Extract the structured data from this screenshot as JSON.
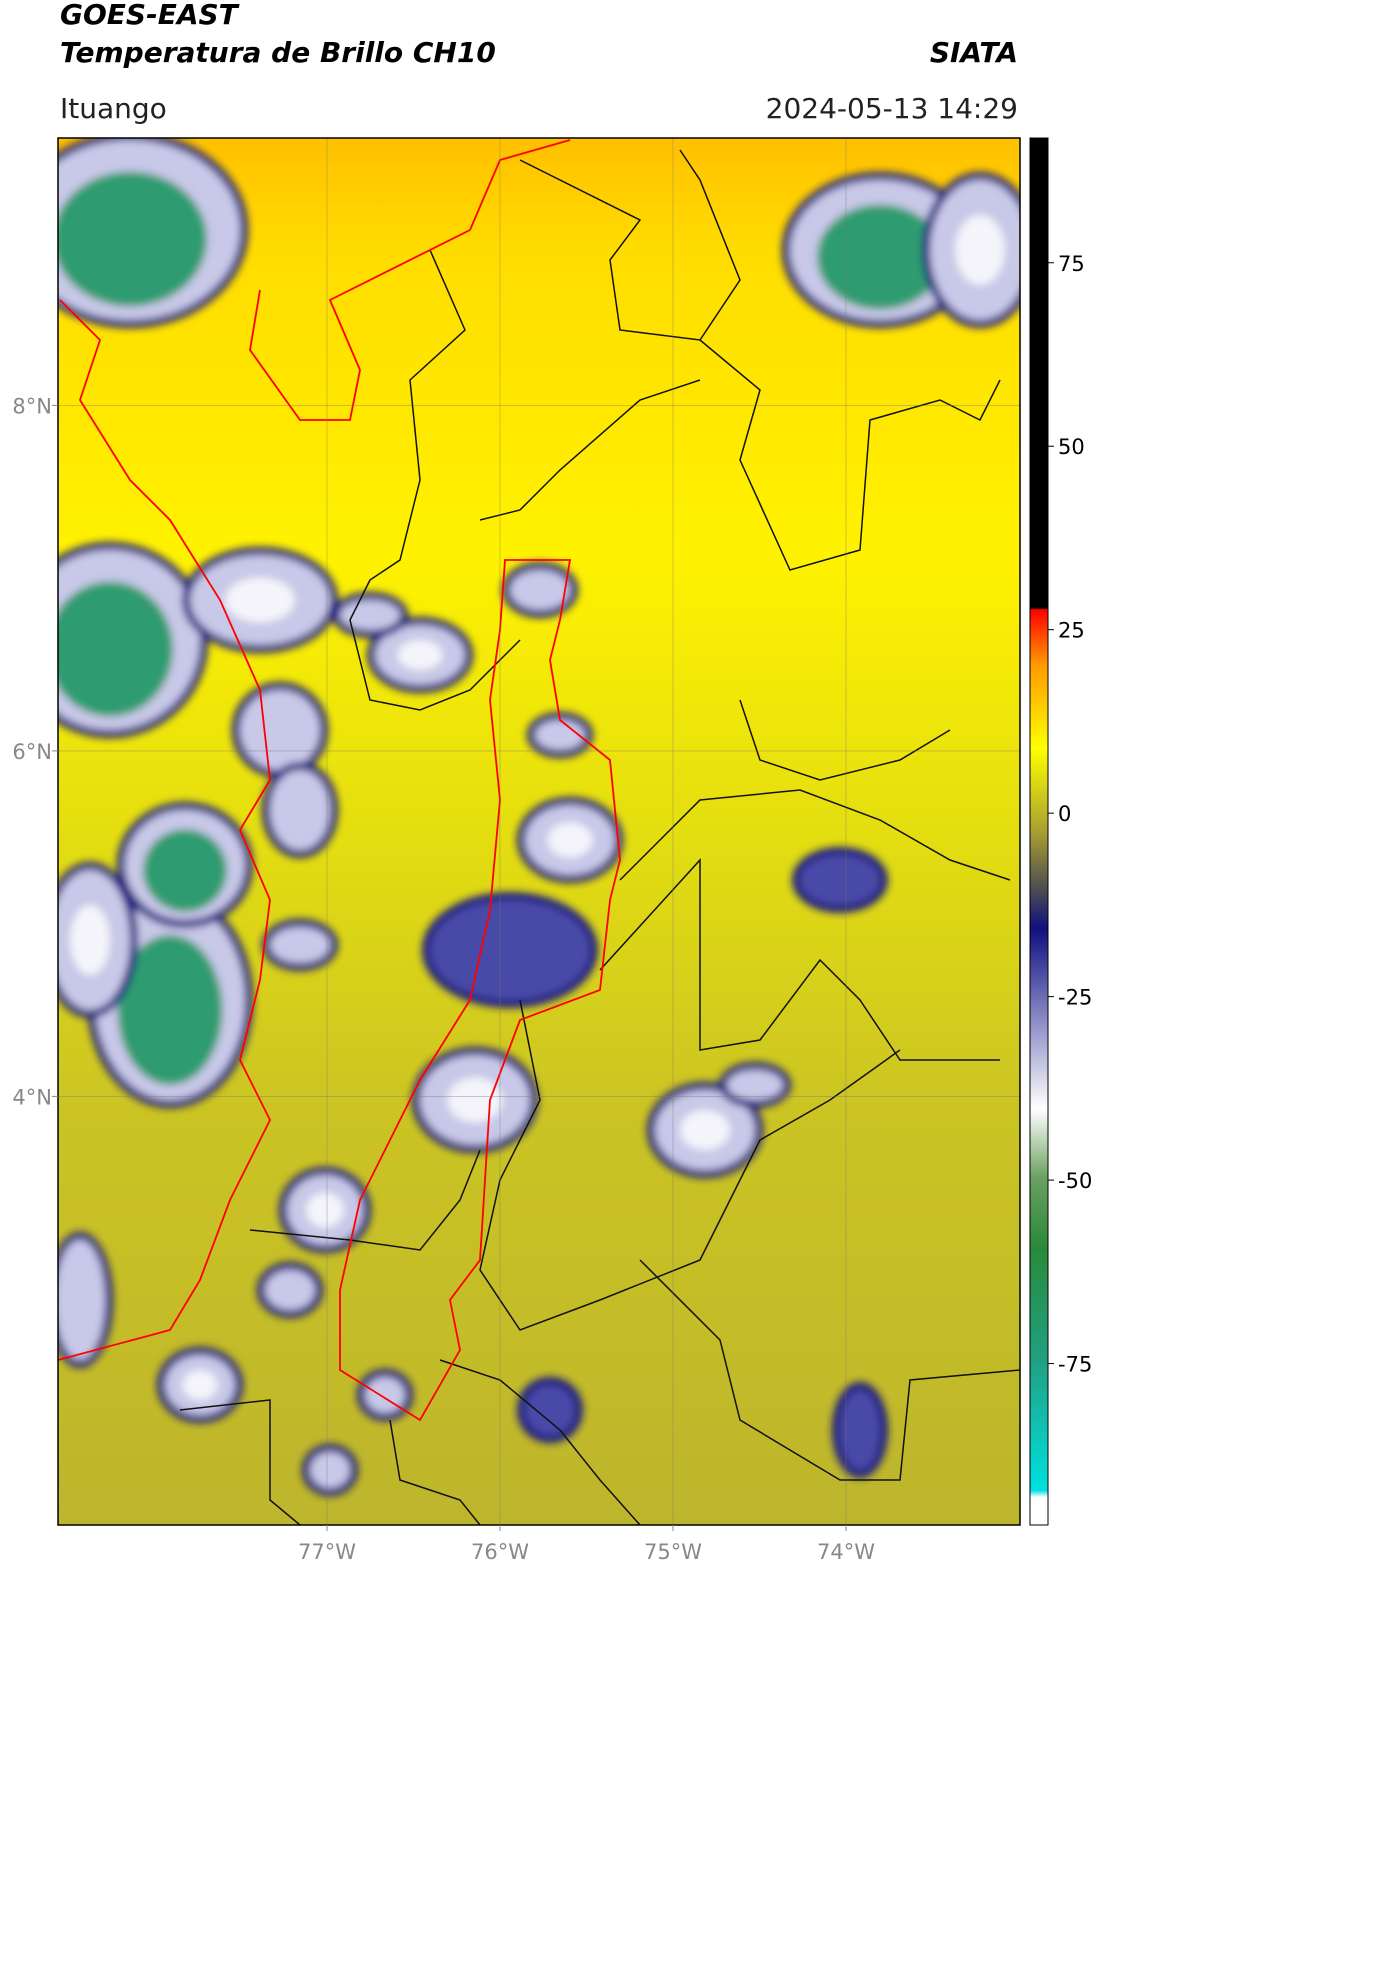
{
  "header": {
    "title_line1": "GOES-EAST",
    "title_line2": "Temperatura de Brillo CH10",
    "source": "SIATA",
    "region": "Ituango",
    "datetime": "2024-05-13 14:29"
  },
  "map": {
    "xlim": [
      -78.555,
      -72.994
    ],
    "ylim": [
      1.519,
      9.548
    ],
    "xticks": [
      {
        "value": -77,
        "label": "77°W"
      },
      {
        "value": -76,
        "label": "76°W"
      },
      {
        "value": -75,
        "label": "75°W"
      },
      {
        "value": -74,
        "label": "74°W"
      }
    ],
    "yticks": [
      {
        "value": 8,
        "label": "8°N"
      },
      {
        "value": 6,
        "label": "6°N"
      },
      {
        "value": 4,
        "label": "4°N"
      }
    ],
    "grid": true
  },
  "colorbar": {
    "lim": [
      -97,
      92
    ],
    "ticks": [
      75,
      50,
      25,
      0,
      -25,
      -50,
      -75
    ]
  }
}
